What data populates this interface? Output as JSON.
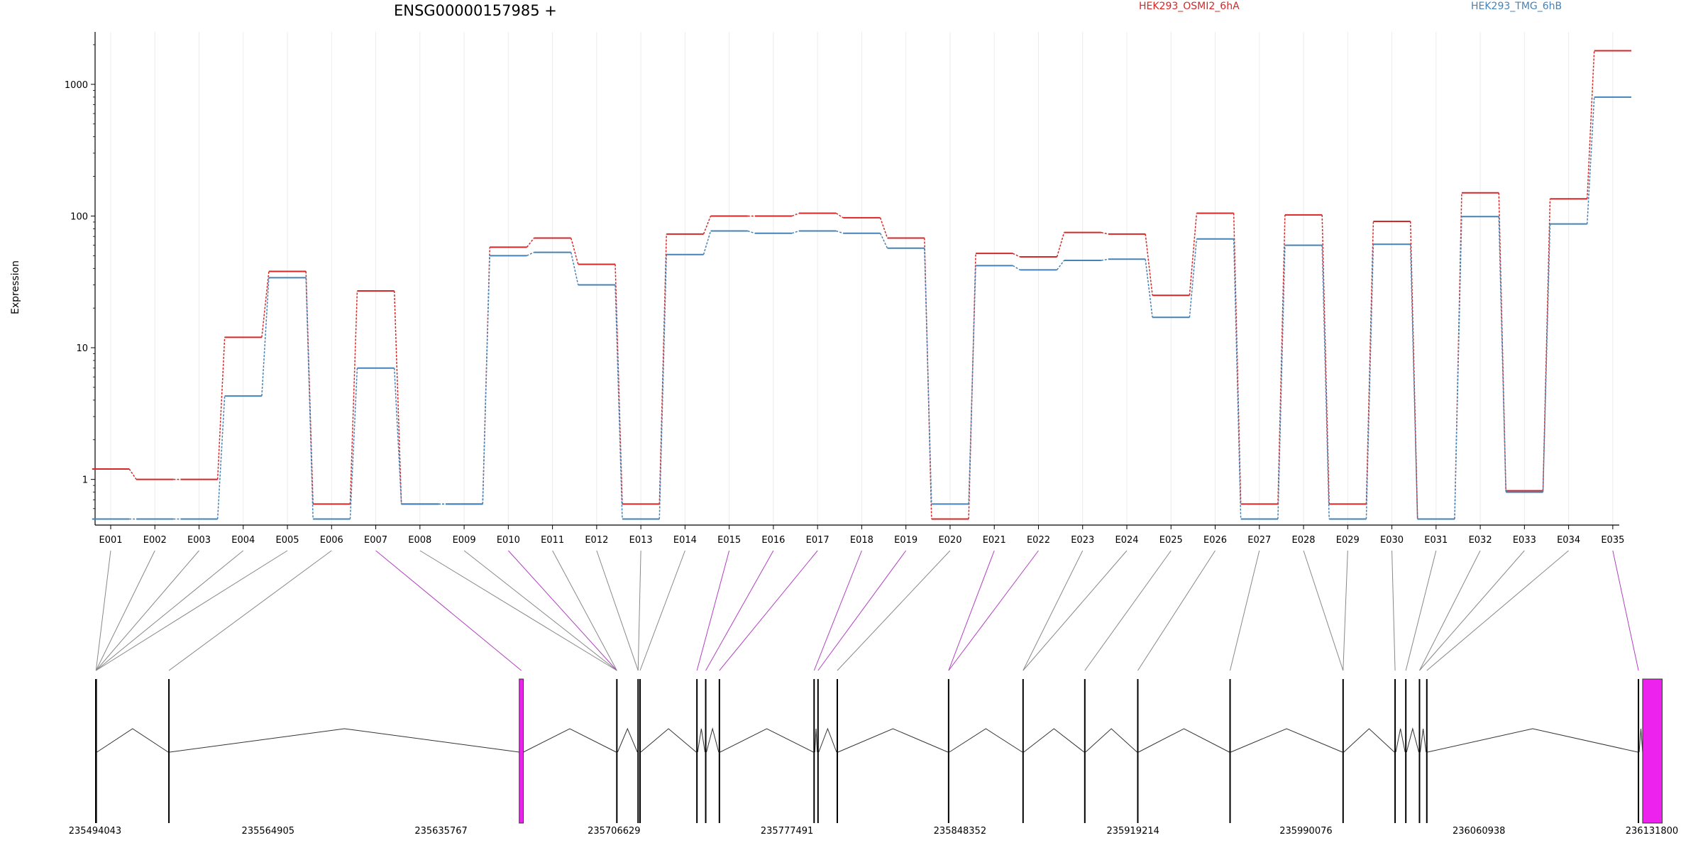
{
  "chart_data": {
    "type": "line",
    "title": "ENSG00000157985 +",
    "xlabel": "",
    "ylabel": "Expression",
    "y_scale": "log",
    "ylim": [
      0.45,
      2500
    ],
    "y_ticks": [
      1,
      10,
      100,
      1000
    ],
    "y_tick_labels": [
      "1",
      "10",
      "100",
      "1000"
    ],
    "grid": "vertical lines at each exon",
    "legend_placement": "top",
    "categories": [
      "E001",
      "E002",
      "E003",
      "E004",
      "E005",
      "E006",
      "E007",
      "E008",
      "E009",
      "E010",
      "E011",
      "E012",
      "E013",
      "E014",
      "E015",
      "E016",
      "E017",
      "E018",
      "E019",
      "E020",
      "E021",
      "E022",
      "E023",
      "E024",
      "E025",
      "E026",
      "E027",
      "E028",
      "E029",
      "E030",
      "E031",
      "E032",
      "E033",
      "E034",
      "E035"
    ],
    "series": [
      {
        "name": "HEK293_OSMI2_6hA",
        "color": "#d62728",
        "values": [
          1.2,
          1,
          1,
          12,
          38,
          0.65,
          27,
          0.65,
          0.65,
          58,
          68,
          43,
          0.65,
          73,
          100,
          100,
          105,
          97,
          68,
          0.5,
          52,
          49,
          75,
          73,
          25,
          105,
          0.65,
          102,
          0.65,
          91,
          0.5,
          150,
          0.82,
          135,
          1800
        ]
      },
      {
        "name": "HEK293_TMG_6hB",
        "color": "#4682b4",
        "values": [
          0.5,
          0.5,
          0.5,
          4.3,
          34,
          0.5,
          7,
          0.65,
          0.65,
          50,
          53,
          30,
          0.5,
          51,
          77,
          74,
          77,
          74,
          57,
          0.65,
          42,
          39,
          46,
          47,
          17,
          67,
          0.5,
          60,
          0.5,
          61,
          0.5,
          99,
          0.8,
          87,
          800
        ]
      }
    ],
    "exon_links": [
      {
        "exon": "E001",
        "target": 0,
        "type": "normal"
      },
      {
        "exon": "E002",
        "target": 0,
        "type": "normal"
      },
      {
        "exon": "E003",
        "target": 0,
        "type": "normal"
      },
      {
        "exon": "E004",
        "target": 0,
        "type": "normal"
      },
      {
        "exon": "E005",
        "target": 0,
        "type": "normal"
      },
      {
        "exon": "E006",
        "target": 1,
        "type": "normal"
      },
      {
        "exon": "E007",
        "target": 2,
        "type": "highlight"
      },
      {
        "exon": "E008",
        "target": 3,
        "type": "normal"
      },
      {
        "exon": "E009",
        "target": 3,
        "type": "normal"
      },
      {
        "exon": "E010",
        "target": 3,
        "type": "highlight"
      },
      {
        "exon": "E011",
        "target": 3,
        "type": "normal"
      },
      {
        "exon": "E012",
        "target": 4,
        "type": "normal"
      },
      {
        "exon": "E013",
        "target": 4,
        "type": "normal"
      },
      {
        "exon": "E014",
        "target": 5,
        "type": "normal"
      },
      {
        "exon": "E015",
        "target": 6,
        "type": "highlight"
      },
      {
        "exon": "E016",
        "target": 7,
        "type": "highlight"
      },
      {
        "exon": "E017",
        "target": 8,
        "type": "highlight"
      },
      {
        "exon": "E018",
        "target": 9,
        "type": "highlight"
      },
      {
        "exon": "E019",
        "target": 10,
        "type": "highlight"
      },
      {
        "exon": "E020",
        "target": 11,
        "type": "normal"
      },
      {
        "exon": "E021",
        "target": 12,
        "type": "highlight"
      },
      {
        "exon": "E022",
        "target": 12,
        "type": "highlight"
      },
      {
        "exon": "E023",
        "target": 13,
        "type": "normal"
      },
      {
        "exon": "E024",
        "target": 13,
        "type": "normal"
      },
      {
        "exon": "E025",
        "target": 14,
        "type": "normal"
      },
      {
        "exon": "E026",
        "target": 15,
        "type": "normal"
      },
      {
        "exon": "E027",
        "target": 16,
        "type": "normal"
      },
      {
        "exon": "E028",
        "target": 17,
        "type": "normal"
      },
      {
        "exon": "E029",
        "target": 17,
        "type": "normal"
      },
      {
        "exon": "E030",
        "target": 18,
        "type": "normal"
      },
      {
        "exon": "E031",
        "target": 19,
        "type": "normal"
      },
      {
        "exon": "E032",
        "target": 20,
        "type": "normal"
      },
      {
        "exon": "E033",
        "target": 20,
        "type": "normal"
      },
      {
        "exon": "E034",
        "target": 21,
        "type": "normal"
      },
      {
        "exon": "E035",
        "target": 22,
        "type": "highlight"
      }
    ],
    "gene_model": {
      "coord_range": [
        235494043,
        236131800
      ],
      "coord_tick_labels": [
        "235494043",
        "235564905",
        "235635767",
        "235706629",
        "235777491",
        "235848352",
        "235919214",
        "235990076",
        "236060938",
        "236131800"
      ],
      "highlight_color": "#ee22ee",
      "exons": [
        {
          "start": 235494043,
          "end": 235494800,
          "highlight": false
        },
        {
          "start": 235524000,
          "end": 235524300,
          "highlight": false
        },
        {
          "start": 235667800,
          "end": 235669500,
          "highlight": true
        },
        {
          "start": 235707500,
          "end": 235707800,
          "highlight": false
        },
        {
          "start": 235716200,
          "end": 235716500,
          "highlight": false
        },
        {
          "start": 235717000,
          "end": 235717300,
          "highlight": false
        },
        {
          "start": 235740300,
          "end": 235740600,
          "highlight": false
        },
        {
          "start": 235743900,
          "end": 235744200,
          "highlight": false
        },
        {
          "start": 235749500,
          "end": 235749800,
          "highlight": false
        },
        {
          "start": 235788300,
          "end": 235788600,
          "highlight": false
        },
        {
          "start": 235789900,
          "end": 235790200,
          "highlight": false
        },
        {
          "start": 235797800,
          "end": 235798100,
          "highlight": false
        },
        {
          "start": 235843400,
          "end": 235843700,
          "highlight": false
        },
        {
          "start": 235873900,
          "end": 235874200,
          "highlight": false
        },
        {
          "start": 235899200,
          "end": 235899500,
          "highlight": false
        },
        {
          "start": 235920900,
          "end": 235921200,
          "highlight": false
        },
        {
          "start": 235958700,
          "end": 235959000,
          "highlight": false
        },
        {
          "start": 236005000,
          "end": 236005300,
          "highlight": false
        },
        {
          "start": 236026300,
          "end": 236026600,
          "highlight": false
        },
        {
          "start": 236030700,
          "end": 236031000,
          "highlight": false
        },
        {
          "start": 236036300,
          "end": 236036600,
          "highlight": false
        },
        {
          "start": 236039300,
          "end": 236039600,
          "highlight": false
        },
        {
          "start": 236126000,
          "end": 236126300,
          "highlight": false
        },
        {
          "start": 236128000,
          "end": 236136000,
          "highlight": true
        }
      ]
    }
  }
}
